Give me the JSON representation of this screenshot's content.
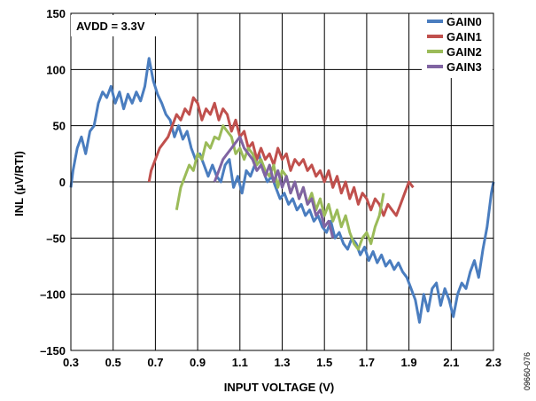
{
  "chart_data": {
    "type": "line",
    "xlabel": "INPUT VOLTAGE (V)",
    "ylabel": "INL (µV/RTI)",
    "xlim": [
      0.3,
      2.3
    ],
    "ylim": [
      -150,
      150
    ],
    "x_ticks": [
      0.3,
      0.5,
      0.7,
      0.9,
      1.1,
      1.3,
      1.5,
      1.7,
      1.9,
      2.1,
      2.3
    ],
    "x_tick_labels": [
      "0.3",
      "0.5",
      "0.7",
      "0.9",
      "1.1",
      "1.3",
      "1.5",
      "1.7",
      "1.9",
      "2.1",
      "2.3"
    ],
    "y_ticks": [
      150,
      100,
      50,
      0,
      -50,
      -100,
      -150
    ],
    "y_tick_labels": [
      "150",
      "100",
      "50",
      "0",
      "–50",
      "–100",
      "–150"
    ],
    "grid": true,
    "legend_position": "top-right",
    "annotation": "AVDD = 3.3V",
    "figure_id": "09660-076",
    "series": [
      {
        "name": "GAIN0",
        "color": "#4a7dbf",
        "points": [
          [
            0.3,
            -5
          ],
          [
            0.31,
            10
          ],
          [
            0.33,
            30
          ],
          [
            0.35,
            40
          ],
          [
            0.37,
            25
          ],
          [
            0.39,
            45
          ],
          [
            0.41,
            50
          ],
          [
            0.43,
            70
          ],
          [
            0.45,
            80
          ],
          [
            0.47,
            75
          ],
          [
            0.49,
            85
          ],
          [
            0.51,
            70
          ],
          [
            0.53,
            80
          ],
          [
            0.55,
            65
          ],
          [
            0.57,
            78
          ],
          [
            0.59,
            70
          ],
          [
            0.61,
            80
          ],
          [
            0.63,
            72
          ],
          [
            0.65,
            85
          ],
          [
            0.67,
            110
          ],
          [
            0.69,
            90
          ],
          [
            0.71,
            78
          ],
          [
            0.73,
            70
          ],
          [
            0.75,
            60
          ],
          [
            0.77,
            55
          ],
          [
            0.79,
            40
          ],
          [
            0.81,
            50
          ],
          [
            0.83,
            38
          ],
          [
            0.85,
            45
          ],
          [
            0.87,
            30
          ],
          [
            0.89,
            20
          ],
          [
            0.91,
            25
          ],
          [
            0.93,
            15
          ],
          [
            0.95,
            5
          ],
          [
            0.97,
            15
          ],
          [
            0.99,
            5
          ],
          [
            1.01,
            0
          ],
          [
            1.03,
            15
          ],
          [
            1.05,
            20
          ],
          [
            1.07,
            -5
          ],
          [
            1.09,
            5
          ],
          [
            1.11,
            -10
          ],
          [
            1.13,
            10
          ],
          [
            1.15,
            5
          ],
          [
            1.17,
            15
          ],
          [
            1.19,
            25
          ],
          [
            1.21,
            10
          ],
          [
            1.23,
            0
          ],
          [
            1.25,
            5
          ],
          [
            1.27,
            -5
          ],
          [
            1.29,
            -15
          ],
          [
            1.31,
            -10
          ],
          [
            1.33,
            -20
          ],
          [
            1.35,
            -15
          ],
          [
            1.37,
            -25
          ],
          [
            1.39,
            -20
          ],
          [
            1.41,
            -30
          ],
          [
            1.43,
            -25
          ],
          [
            1.45,
            -35
          ],
          [
            1.47,
            -30
          ],
          [
            1.49,
            -40
          ],
          [
            1.51,
            -45
          ],
          [
            1.53,
            -35
          ],
          [
            1.55,
            -50
          ],
          [
            1.57,
            -45
          ],
          [
            1.59,
            -55
          ],
          [
            1.61,
            -60
          ],
          [
            1.63,
            -50
          ],
          [
            1.65,
            -55
          ],
          [
            1.67,
            -65
          ],
          [
            1.69,
            -58
          ],
          [
            1.71,
            -70
          ],
          [
            1.73,
            -62
          ],
          [
            1.75,
            -72
          ],
          [
            1.77,
            -65
          ],
          [
            1.79,
            -75
          ],
          [
            1.81,
            -70
          ],
          [
            1.83,
            -78
          ],
          [
            1.85,
            -72
          ],
          [
            1.87,
            -80
          ],
          [
            1.89,
            -85
          ],
          [
            1.91,
            -95
          ],
          [
            1.93,
            -105
          ],
          [
            1.95,
            -125
          ],
          [
            1.97,
            -100
          ],
          [
            1.99,
            -115
          ],
          [
            2.01,
            -95
          ],
          [
            2.03,
            -90
          ],
          [
            2.05,
            -110
          ],
          [
            2.07,
            -95
          ],
          [
            2.09,
            -105
          ],
          [
            2.11,
            -120
          ],
          [
            2.13,
            -100
          ],
          [
            2.15,
            -90
          ],
          [
            2.17,
            -95
          ],
          [
            2.19,
            -80
          ],
          [
            2.21,
            -70
          ],
          [
            2.23,
            -85
          ],
          [
            2.25,
            -60
          ],
          [
            2.27,
            -40
          ],
          [
            2.29,
            -10
          ],
          [
            2.3,
            0
          ]
        ]
      },
      {
        "name": "GAIN1",
        "color": "#c0504d",
        "points": [
          [
            0.67,
            0
          ],
          [
            0.68,
            10
          ],
          [
            0.7,
            20
          ],
          [
            0.72,
            30
          ],
          [
            0.74,
            35
          ],
          [
            0.76,
            40
          ],
          [
            0.78,
            50
          ],
          [
            0.8,
            60
          ],
          [
            0.82,
            55
          ],
          [
            0.84,
            65
          ],
          [
            0.86,
            60
          ],
          [
            0.88,
            75
          ],
          [
            0.9,
            70
          ],
          [
            0.92,
            55
          ],
          [
            0.94,
            65
          ],
          [
            0.96,
            60
          ],
          [
            0.98,
            70
          ],
          [
            1.0,
            55
          ],
          [
            1.02,
            65
          ],
          [
            1.04,
            60
          ],
          [
            1.06,
            45
          ],
          [
            1.08,
            55
          ],
          [
            1.1,
            40
          ],
          [
            1.12,
            45
          ],
          [
            1.14,
            30
          ],
          [
            1.16,
            35
          ],
          [
            1.18,
            20
          ],
          [
            1.2,
            30
          ],
          [
            1.22,
            20
          ],
          [
            1.24,
            25
          ],
          [
            1.26,
            15
          ],
          [
            1.28,
            30
          ],
          [
            1.3,
            20
          ],
          [
            1.32,
            25
          ],
          [
            1.34,
            10
          ],
          [
            1.36,
            20
          ],
          [
            1.38,
            15
          ],
          [
            1.4,
            20
          ],
          [
            1.42,
            10
          ],
          [
            1.44,
            15
          ],
          [
            1.46,
            5
          ],
          [
            1.48,
            10
          ],
          [
            1.5,
            0
          ],
          [
            1.52,
            10
          ],
          [
            1.54,
            -5
          ],
          [
            1.56,
            5
          ],
          [
            1.58,
            -10
          ],
          [
            1.6,
            0
          ],
          [
            1.62,
            -15
          ],
          [
            1.64,
            -5
          ],
          [
            1.66,
            -20
          ],
          [
            1.68,
            -10
          ],
          [
            1.7,
            -15
          ],
          [
            1.72,
            -25
          ],
          [
            1.74,
            -15
          ],
          [
            1.76,
            -20
          ],
          [
            1.78,
            -30
          ],
          [
            1.8,
            -20
          ],
          [
            1.82,
            -25
          ],
          [
            1.84,
            -30
          ],
          [
            1.86,
            -20
          ],
          [
            1.88,
            -10
          ],
          [
            1.9,
            0
          ],
          [
            1.92,
            -5
          ]
        ]
      },
      {
        "name": "GAIN2",
        "color": "#9bbb59",
        "points": [
          [
            0.8,
            -25
          ],
          [
            0.82,
            -5
          ],
          [
            0.84,
            5
          ],
          [
            0.86,
            15
          ],
          [
            0.88,
            10
          ],
          [
            0.9,
            25
          ],
          [
            0.92,
            20
          ],
          [
            0.94,
            35
          ],
          [
            0.96,
            30
          ],
          [
            0.98,
            40
          ],
          [
            1.0,
            38
          ],
          [
            1.02,
            50
          ],
          [
            1.04,
            45
          ],
          [
            1.06,
            40
          ],
          [
            1.08,
            25
          ],
          [
            1.1,
            30
          ],
          [
            1.12,
            20
          ],
          [
            1.14,
            30
          ],
          [
            1.16,
            25
          ],
          [
            1.18,
            15
          ],
          [
            1.2,
            20
          ],
          [
            1.22,
            10
          ],
          [
            1.24,
            5
          ],
          [
            1.26,
            15
          ],
          [
            1.28,
            -5
          ],
          [
            1.3,
            10
          ],
          [
            1.32,
            5
          ],
          [
            1.34,
            -10
          ],
          [
            1.36,
            0
          ],
          [
            1.38,
            -15
          ],
          [
            1.4,
            -5
          ],
          [
            1.42,
            -20
          ],
          [
            1.44,
            -10
          ],
          [
            1.46,
            -25
          ],
          [
            1.48,
            -15
          ],
          [
            1.5,
            -30
          ],
          [
            1.52,
            -20
          ],
          [
            1.54,
            -35
          ],
          [
            1.56,
            -25
          ],
          [
            1.58,
            -40
          ],
          [
            1.6,
            -30
          ],
          [
            1.62,
            -45
          ],
          [
            1.64,
            -55
          ],
          [
            1.66,
            -60
          ],
          [
            1.68,
            -50
          ],
          [
            1.7,
            -45
          ],
          [
            1.72,
            -55
          ],
          [
            1.74,
            -40
          ],
          [
            1.76,
            -30
          ],
          [
            1.78,
            -10
          ]
        ]
      },
      {
        "name": "GAIN3",
        "color": "#8064a2",
        "points": [
          [
            0.98,
            0
          ],
          [
            1.0,
            10
          ],
          [
            1.02,
            20
          ],
          [
            1.04,
            25
          ],
          [
            1.06,
            30
          ],
          [
            1.08,
            35
          ],
          [
            1.1,
            40
          ],
          [
            1.12,
            30
          ],
          [
            1.14,
            25
          ],
          [
            1.16,
            20
          ],
          [
            1.18,
            10
          ],
          [
            1.2,
            15
          ],
          [
            1.22,
            5
          ],
          [
            1.24,
            15
          ],
          [
            1.26,
            0
          ],
          [
            1.28,
            10
          ],
          [
            1.3,
            -5
          ],
          [
            1.32,
            5
          ],
          [
            1.34,
            -10
          ],
          [
            1.36,
            0
          ],
          [
            1.38,
            -15
          ],
          [
            1.4,
            -5
          ],
          [
            1.42,
            -20
          ],
          [
            1.44,
            -15
          ],
          [
            1.46,
            -30
          ],
          [
            1.48,
            -25
          ],
          [
            1.5,
            -40
          ],
          [
            1.52,
            -35
          ],
          [
            1.54,
            -50
          ]
        ]
      }
    ]
  }
}
